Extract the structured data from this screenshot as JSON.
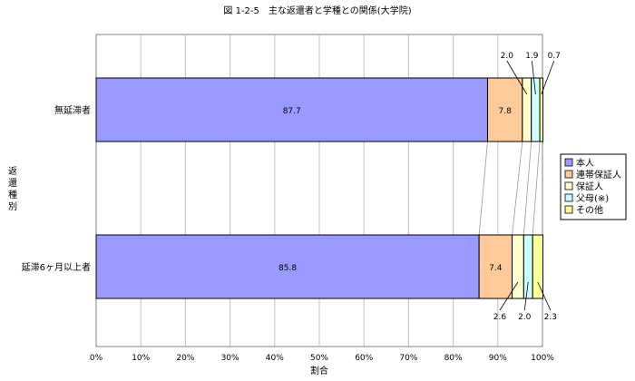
{
  "chart_data": {
    "type": "bar",
    "orientation": "horizontal",
    "stacked": true,
    "title": "図 1-2-5　主な返還者と学種との関係(大学院)",
    "xlabel": "割合",
    "ylabel": "返還種別",
    "xlim": [
      0,
      100
    ],
    "x_ticks": [
      "0%",
      "10%",
      "20%",
      "30%",
      "40%",
      "50%",
      "60%",
      "70%",
      "80%",
      "90%",
      "100%"
    ],
    "grid": "vertical",
    "legend_position": "right",
    "categories": [
      "無延滞者",
      "延滞6ヶ月以上者"
    ],
    "series": [
      {
        "name": "本人",
        "values": [
          87.7,
          85.8
        ],
        "color": "#9999ff"
      },
      {
        "name": "連帯保証人",
        "values": [
          7.8,
          7.4
        ],
        "color": "#ffcc99"
      },
      {
        "name": "保証人",
        "values": [
          2.0,
          2.6
        ],
        "color": "#ffffcc"
      },
      {
        "name": "父母(※)",
        "values": [
          1.9,
          2.0
        ],
        "color": "#ccffff"
      },
      {
        "name": "その他",
        "values": [
          0.7,
          2.3
        ],
        "color": "#ffff99"
      }
    ]
  }
}
